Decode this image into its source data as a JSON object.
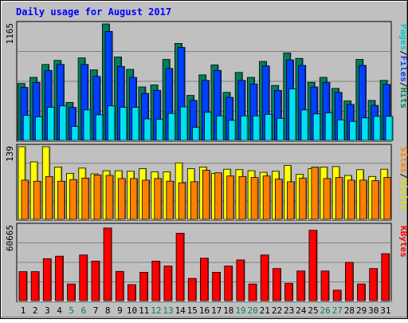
{
  "chart_data": {
    "title": "Daily usage for August 2017",
    "type": "bar",
    "x": [
      "1",
      "2",
      "3",
      "4",
      "5",
      "6",
      "7",
      "8",
      "9",
      "10",
      "11",
      "12",
      "13",
      "14",
      "15",
      "16",
      "17",
      "18",
      "19",
      "20",
      "21",
      "22",
      "23",
      "24",
      "25",
      "26",
      "27",
      "28",
      "29",
      "30",
      "31"
    ],
    "weekend_days": [
      5,
      6,
      12,
      13,
      19,
      20,
      26,
      27
    ],
    "panels": [
      {
        "id": "pages_files_hits",
        "ymax_label": "1165",
        "ymax": 1165,
        "side_label": [
          "Pages",
          "/",
          "Files",
          "/",
          "Hits"
        ],
        "side_colors": [
          "#00c8c8",
          "#000000",
          "#0040ff",
          "#000000",
          "#008060"
        ],
        "series": [
          {
            "name": "Hits",
            "color": "#008060",
            "values": [
              570,
              630,
              760,
              800,
              380,
              825,
              705,
              1165,
              835,
              710,
              535,
              555,
              810,
              970,
              450,
              655,
              755,
              480,
              680,
              630,
              790,
              550,
              875,
              820,
              580,
              630,
              520,
              395,
              810,
              400,
              600
            ]
          },
          {
            "name": "Files",
            "color": "#0040ff",
            "values": [
              530,
              580,
              700,
              760,
              330,
              760,
              640,
              1090,
              740,
              630,
              470,
              500,
              720,
              930,
              400,
              600,
              700,
              430,
              600,
              565,
              745,
              500,
              805,
              750,
              535,
              580,
              480,
              360,
              750,
              350,
              560
            ]
          },
          {
            "name": "Pages",
            "color": "#00e0f0",
            "values": [
              250,
              235,
              330,
              345,
              140,
              305,
              255,
              345,
              330,
              330,
              215,
              210,
              270,
              335,
              130,
              280,
              245,
              200,
              245,
              245,
              260,
              220,
              515,
              305,
              265,
              275,
              205,
              190,
              225,
              240,
              240
            ]
          }
        ]
      },
      {
        "id": "sites_visits",
        "ymax_label": "139",
        "ymax": 139,
        "side_label": [
          "Sites",
          "/",
          "Visits"
        ],
        "side_colors": [
          "#ff8000",
          "#000000",
          "#e0e000"
        ],
        "series": [
          {
            "name": "Visits",
            "color": "#ffff00",
            "values": [
              139,
              110,
              139,
              100,
              88,
              98,
              87,
              93,
              93,
              92,
              97,
              91,
              91,
              108,
              97,
              100,
              88,
              96,
              95,
              93,
              90,
              92,
              103,
              86,
              97,
              100,
              101,
              84,
              95,
              82,
              96
            ]
          },
          {
            "name": "Sites",
            "color": "#ff8000",
            "values": [
              75,
              73,
              82,
              73,
              76,
              79,
              85,
              84,
              78,
              78,
              75,
              78,
              73,
              70,
              72,
              94,
              89,
              83,
              82,
              80,
              83,
              77,
              72,
              79,
              100,
              78,
              80,
              75,
              75,
              74,
              80
            ]
          }
        ]
      },
      {
        "id": "kbytes",
        "ymax_label": "60665",
        "ymax": 60665,
        "side_label": [
          "KBytes"
        ],
        "side_colors": [
          "#ff0000"
        ],
        "series": [
          {
            "name": "KBytes",
            "color": "#ff0000",
            "values": [
              23500,
              23500,
              34000,
              36000,
              13500,
              37000,
              32000,
              58800,
              23700,
              13000,
              23000,
              32000,
              28000,
              54600,
              18000,
              34400,
              23000,
              28000,
              33000,
              13500,
              37000,
              26000,
              14000,
              24000,
              57000,
              24000,
              8500,
              31000,
              13500,
              26000,
              38000
            ]
          }
        ]
      }
    ]
  }
}
